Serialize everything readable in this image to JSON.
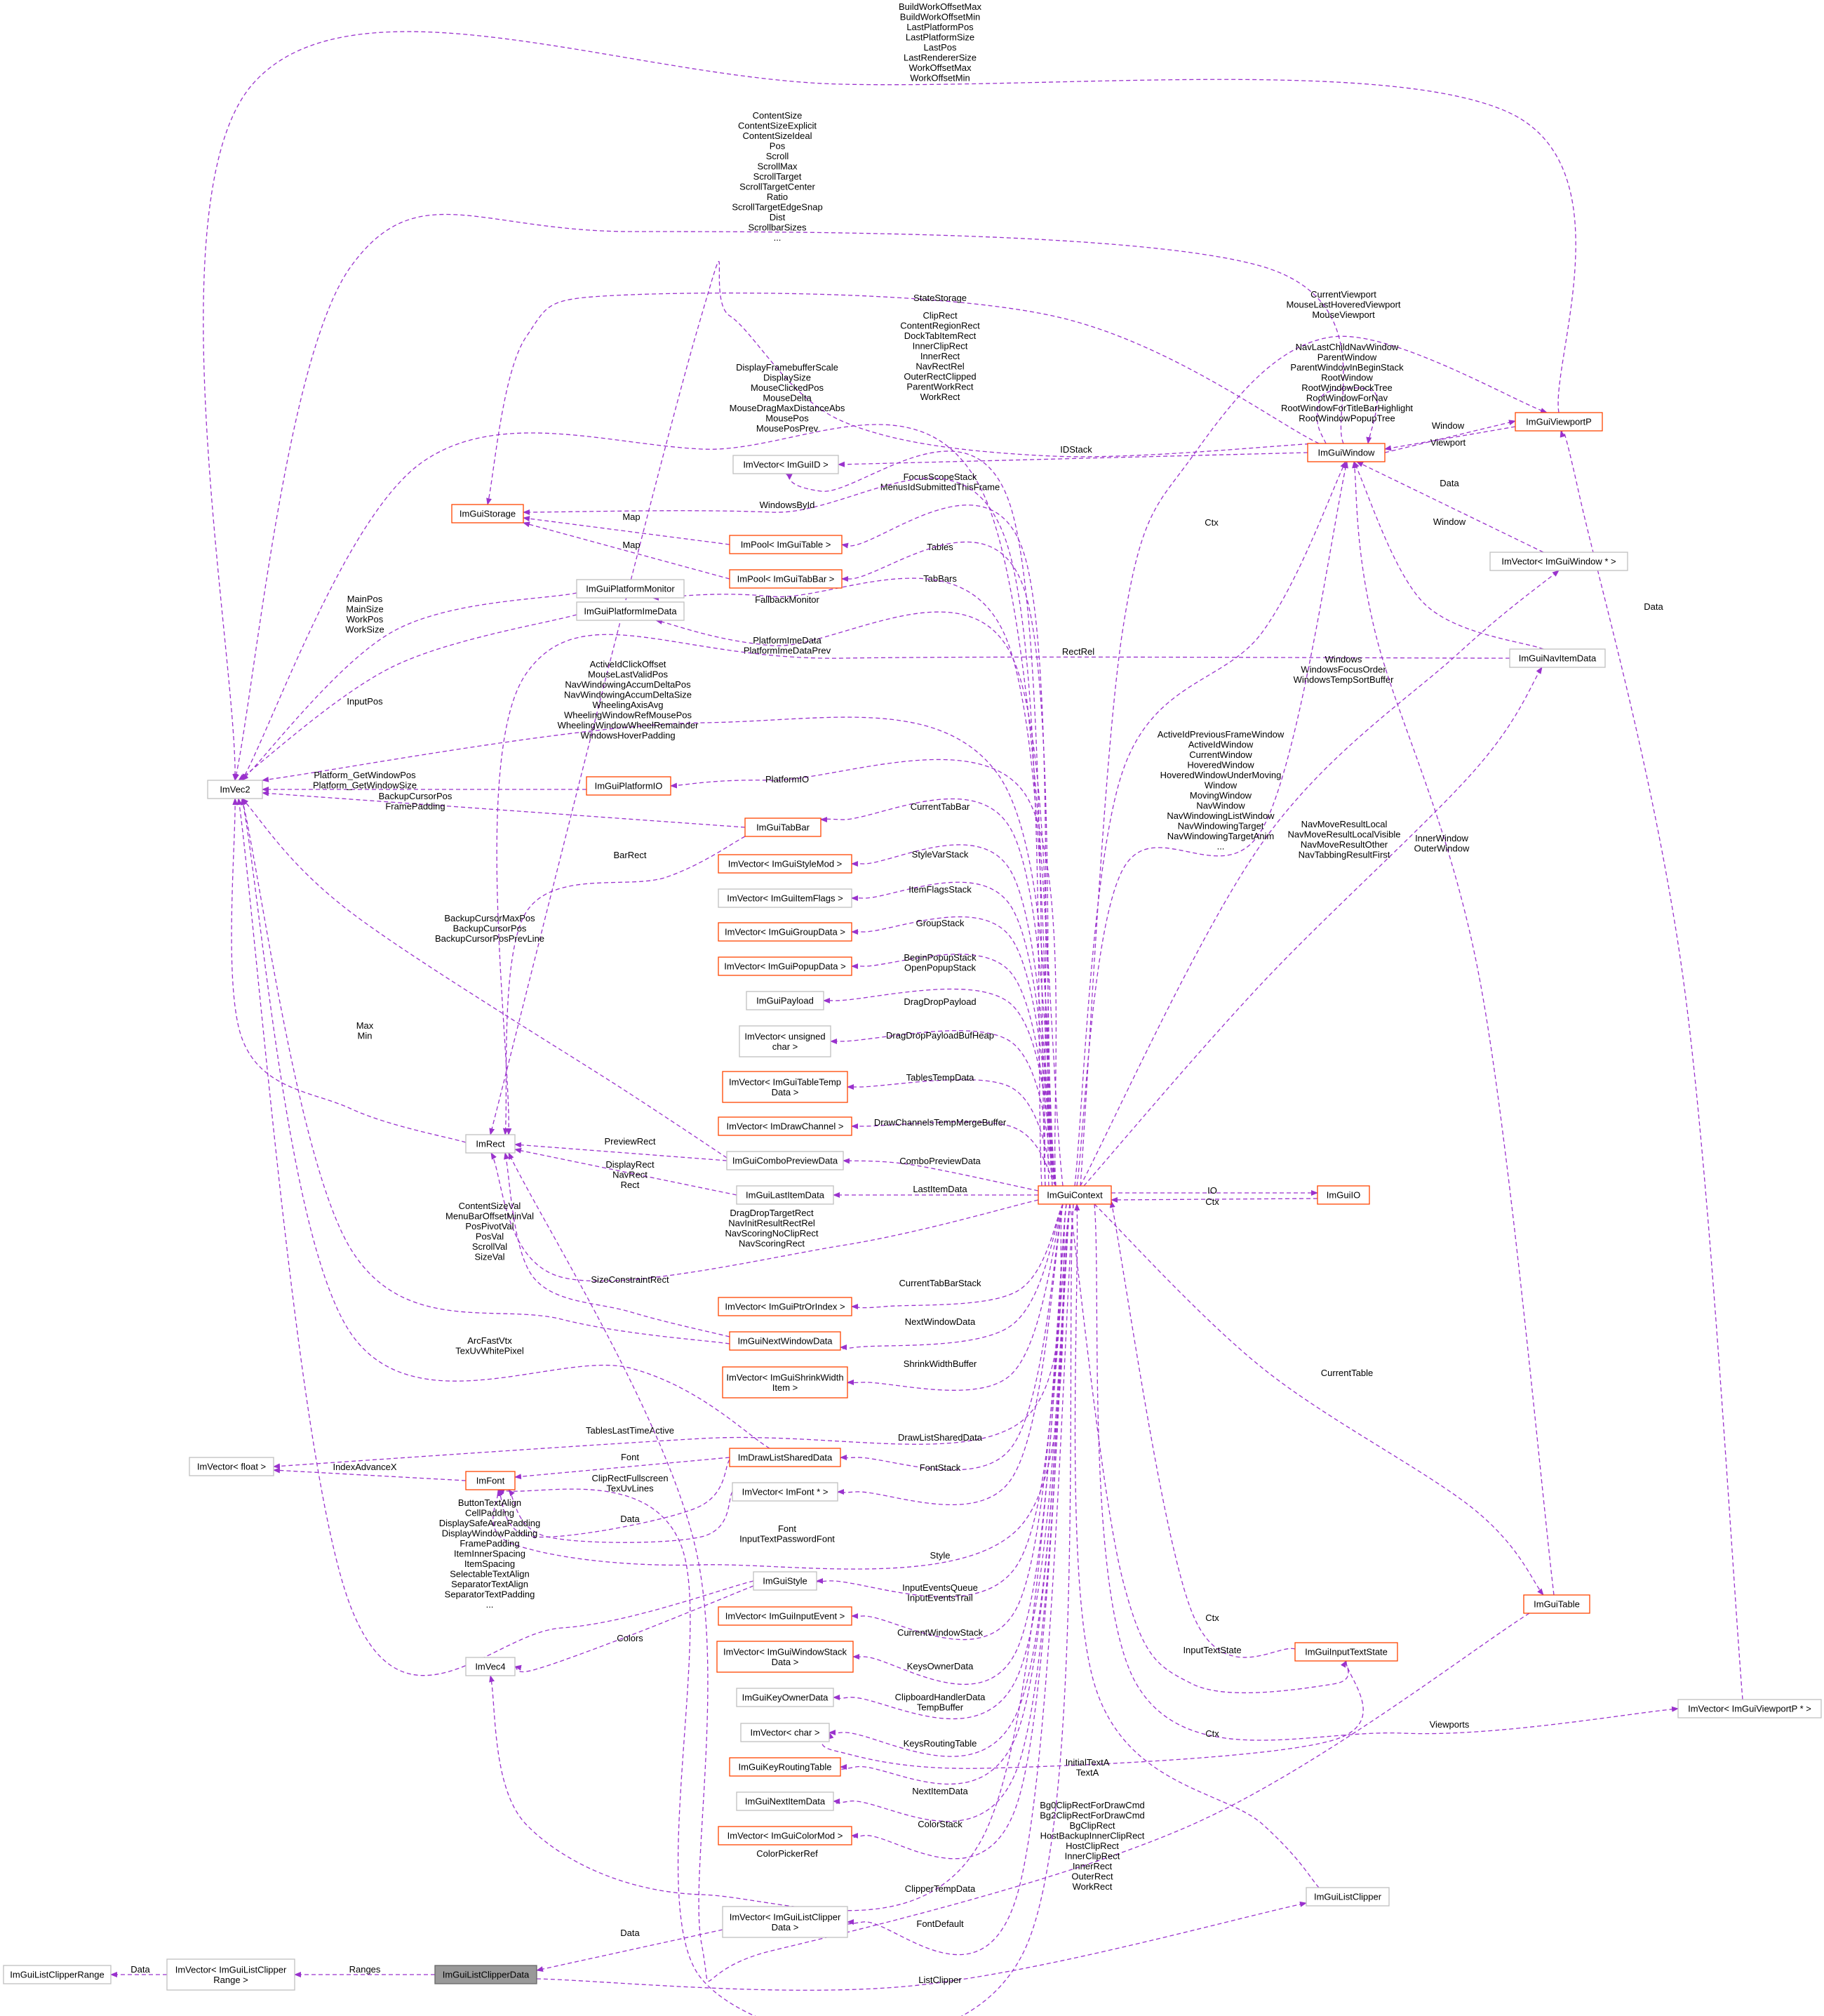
{
  "colors": {
    "edge": "#9a32cd",
    "node_border_defined": "#ff4500",
    "node_border_external": "#bfbfbf",
    "node_highlight_fill": "#999999",
    "text": "#000000"
  },
  "nodes": {
    "ImGuiListClipperRange": {
      "label": [
        "ImGuiListClipperRange"
      ],
      "kind": "external"
    },
    "ImVectorClipperRange": {
      "label": [
        "ImVector< ImGuiListClipper",
        "Range >"
      ],
      "kind": "external"
    },
    "ImGuiListClipperData": {
      "label": [
        "ImGuiListClipperData"
      ],
      "kind": "highlight"
    },
    "ImVec2": {
      "label": [
        "ImVec2"
      ],
      "kind": "external"
    },
    "ImGuiStorage": {
      "label": [
        "ImGuiStorage"
      ],
      "kind": "defined"
    },
    "ImGuiPlatformMonitor": {
      "label": [
        "ImGuiPlatformMonitor"
      ],
      "kind": "external"
    },
    "ImGuiPlatformImeData": {
      "label": [
        "ImGuiPlatformImeData"
      ],
      "kind": "external"
    },
    "ImVectorImGuiID": {
      "label": [
        "ImVector< ImGuiID >"
      ],
      "kind": "external"
    },
    "ImPoolTable": {
      "label": [
        "ImPool< ImGuiTable >"
      ],
      "kind": "defined"
    },
    "ImPoolTabBar": {
      "label": [
        "ImPool< ImGuiTabBar >"
      ],
      "kind": "defined"
    },
    "ImGuiPlatformIO": {
      "label": [
        "ImGuiPlatformIO"
      ],
      "kind": "defined"
    },
    "ImGuiTabBar": {
      "label": [
        "ImGuiTabBar"
      ],
      "kind": "defined"
    },
    "ImVectorStyleMod": {
      "label": [
        "ImVector< ImGuiStyleMod >"
      ],
      "kind": "defined"
    },
    "ImVectorItemFlags": {
      "label": [
        "ImVector< ImGuiItemFlags >"
      ],
      "kind": "external"
    },
    "ImVectorGroupData": {
      "label": [
        "ImVector< ImGuiGroupData >"
      ],
      "kind": "defined"
    },
    "ImVectorPopupData": {
      "label": [
        "ImVector< ImGuiPopupData >"
      ],
      "kind": "defined"
    },
    "ImGuiPayload": {
      "label": [
        "ImGuiPayload"
      ],
      "kind": "external"
    },
    "ImVectorUChar": {
      "label": [
        "ImVector< unsigned",
        "char >"
      ],
      "kind": "external"
    },
    "ImVectorTableTemp": {
      "label": [
        "ImVector< ImGuiTableTemp",
        "Data >"
      ],
      "kind": "defined"
    },
    "ImVectorDrawChannel": {
      "label": [
        "ImVector< ImDrawChannel >"
      ],
      "kind": "defined"
    },
    "ImRect": {
      "label": [
        "ImRect"
      ],
      "kind": "external"
    },
    "ImGuiComboPreviewData": {
      "label": [
        "ImGuiComboPreviewData"
      ],
      "kind": "external"
    },
    "ImGuiLastItemData": {
      "label": [
        "ImGuiLastItemData"
      ],
      "kind": "external"
    },
    "ImGuiContext": {
      "label": [
        "ImGuiContext"
      ],
      "kind": "defined"
    },
    "ImGuiIO": {
      "label": [
        "ImGuiIO"
      ],
      "kind": "defined"
    },
    "ImVectorPtrOrIndex": {
      "label": [
        "ImVector< ImGuiPtrOrIndex >"
      ],
      "kind": "defined"
    },
    "ImGuiNextWindowData": {
      "label": [
        "ImGuiNextWindowData"
      ],
      "kind": "defined"
    },
    "ImVectorShrinkWidth": {
      "label": [
        "ImVector< ImGuiShrinkWidth",
        "Item >"
      ],
      "kind": "defined"
    },
    "ImVectorFloat": {
      "label": [
        "ImVector< float >"
      ],
      "kind": "external"
    },
    "ImFont": {
      "label": [
        "ImFont"
      ],
      "kind": "defined"
    },
    "ImDrawListSharedData": {
      "label": [
        "ImDrawListSharedData"
      ],
      "kind": "defined"
    },
    "ImVectorFontPtr": {
      "label": [
        "ImVector< ImFont * >"
      ],
      "kind": "external"
    },
    "ImGuiStyle": {
      "label": [
        "ImGuiStyle"
      ],
      "kind": "external"
    },
    "ImVectorInputEvent": {
      "label": [
        "ImVector< ImGuiInputEvent >"
      ],
      "kind": "defined"
    },
    "ImVec4": {
      "label": [
        "ImVec4"
      ],
      "kind": "external"
    },
    "ImVectorWindowStack": {
      "label": [
        "ImVector< ImGuiWindowStack",
        "Data >"
      ],
      "kind": "defined"
    },
    "ImGuiKeyOwnerData": {
      "label": [
        "ImGuiKeyOwnerData"
      ],
      "kind": "external"
    },
    "ImVectorChar": {
      "label": [
        "ImVector< char >"
      ],
      "kind": "external"
    },
    "ImGuiKeyRoutingTable": {
      "label": [
        "ImGuiKeyRoutingTable"
      ],
      "kind": "defined"
    },
    "ImGuiNextItemData": {
      "label": [
        "ImGuiNextItemData"
      ],
      "kind": "external"
    },
    "ImVectorColorMod": {
      "label": [
        "ImVector< ImGuiColorMod >"
      ],
      "kind": "defined"
    },
    "ImVectorClipperData": {
      "label": [
        "ImVector< ImGuiListClipper",
        "Data >"
      ],
      "kind": "external"
    },
    "ImGuiWindow": {
      "label": [
        "ImGuiWindow"
      ],
      "kind": "defined"
    },
    "ImGuiViewportP": {
      "label": [
        "ImGuiViewportP"
      ],
      "kind": "defined"
    },
    "ImVectorWindowPtr": {
      "label": [
        "ImVector< ImGuiWindow * >"
      ],
      "kind": "external"
    },
    "ImGuiNavItemData": {
      "label": [
        "ImGuiNavItemData"
      ],
      "kind": "external"
    },
    "ImGuiTable": {
      "label": [
        "ImGuiTable"
      ],
      "kind": "defined"
    },
    "ImGuiInputTextState": {
      "label": [
        "ImGuiInputTextState"
      ],
      "kind": "defined"
    },
    "ImVectorViewportPtr": {
      "label": [
        "ImVector< ImGuiViewportP * >"
      ],
      "kind": "external"
    },
    "ImGuiListClipper": {
      "label": [
        "ImGuiListClipper"
      ],
      "kind": "external"
    }
  },
  "edges": [
    {
      "from": "ImVectorClipperRange",
      "to": "ImGuiListClipperRange",
      "label": [
        "Data"
      ]
    },
    {
      "from": "ImGuiListClipperData",
      "to": "ImVectorClipperRange",
      "label": [
        "Ranges"
      ]
    },
    {
      "from": "ImGuiViewportP",
      "to": "ImVec2",
      "label": [
        "BuildWorkOffsetMax",
        "BuildWorkOffsetMin",
        "LastPlatformPos",
        "LastPlatformSize",
        "LastPos",
        "LastRendererSize",
        "WorkOffsetMax",
        "WorkOffsetMin"
      ]
    },
    {
      "from": "ImGuiWindow",
      "to": "ImVec2",
      "label": [
        "ContentSize",
        "ContentSizeExplicit",
        "ContentSizeIdeal",
        "Pos",
        "Scroll",
        "ScrollMax",
        "ScrollTarget",
        "ScrollTargetCenter",
        "Ratio",
        "ScrollTargetEdgeSnap",
        "Dist",
        "ScrollbarSizes",
        "..."
      ]
    },
    {
      "from": "ImGuiWindow",
      "to": "ImGuiStorage",
      "label": [
        "StateStorage"
      ]
    },
    {
      "from": "ImGuiWindow",
      "to": "ImRect",
      "label": [
        "ClipRect",
        "ContentRegionRect",
        "DockTabItemRect",
        "InnerClipRect",
        "InnerRect",
        "NavRectRel",
        "OuterRectClipped",
        "ParentWorkRect",
        "WorkRect"
      ]
    },
    {
      "from": "ImGuiContext",
      "to": "ImVec2",
      "label": [
        "DisplayFramebufferScale",
        "DisplaySize",
        "MouseClickedPos",
        "MouseDelta",
        "MouseDragMaxDistanceAbs",
        "MousePos",
        "MousePosPrev"
      ]
    },
    {
      "from": "ImGuiContext",
      "to": "ImGuiViewportP",
      "label": [
        "CurrentViewport",
        "MouseLastHoveredViewport",
        "MouseViewport"
      ]
    },
    {
      "from": "ImGuiWindow",
      "to": "ImGuiWindow",
      "label": [
        "NavLastChildNavWindow",
        "ParentWindow",
        "ParentWindowInBeginStack",
        "RootWindow",
        "RootWindowDockTree",
        "RootWindowForNav",
        "RootWindowForTitleBarHighlight",
        "RootWindowPopupTree"
      ]
    },
    {
      "from": "ImGuiViewportP",
      "to": "ImGuiWindow",
      "label": [
        "Window"
      ]
    },
    {
      "from": "ImGuiWindow",
      "to": "ImGuiViewportP",
      "label": [
        "Viewport"
      ]
    },
    {
      "from": "ImGuiWindow",
      "to": "ImVectorImGuiID",
      "label": [
        "IDStack"
      ]
    },
    {
      "from": "ImGuiContext",
      "to": "ImVectorImGuiID",
      "label": [
        "FocusScopeStack",
        "MenusIdSubmittedThisFrame"
      ]
    },
    {
      "from": "ImGuiContext",
      "to": "ImGuiStorage",
      "label": [
        "WindowsById"
      ]
    },
    {
      "from": "ImPoolTable",
      "to": "ImGuiStorage",
      "label": [
        "Map"
      ]
    },
    {
      "from": "ImPoolTabBar",
      "to": "ImGuiStorage",
      "label": [
        "Map"
      ]
    },
    {
      "from": "ImGuiContext",
      "to": "ImPoolTable",
      "label": [
        "Tables"
      ]
    },
    {
      "from": "ImGuiContext",
      "to": "ImPoolTabBar",
      "label": [
        "TabBars"
      ]
    },
    {
      "from": "ImVectorWindowPtr",
      "to": "ImGuiWindow",
      "label": [
        "Data"
      ]
    },
    {
      "from": "ImGuiNavItemData",
      "to": "ImGuiWindow",
      "label": [
        "Window"
      ]
    },
    {
      "from": "ImGuiContext",
      "to": "ImGuiWindow",
      "label": [
        "Ctx"
      ]
    },
    {
      "from": "ImGuiPlatformMonitor",
      "to": "ImVec2",
      "label": [
        "MainPos",
        "MainSize",
        "WorkPos",
        "WorkSize"
      ]
    },
    {
      "from": "ImGuiContext",
      "to": "ImGuiPlatformMonitor",
      "label": [
        "FallbackMonitor"
      ]
    },
    {
      "from": "ImGuiContext",
      "to": "ImGuiPlatformImeData",
      "label": [
        "PlatformImeData",
        "PlatformImeDataPrev"
      ]
    },
    {
      "from": "ImGuiPlatformImeData",
      "to": "ImVec2",
      "label": [
        "InputPos"
      ]
    },
    {
      "from": "ImGuiNavItemData",
      "to": "ImRect",
      "label": [
        "RectRel"
      ]
    },
    {
      "from": "ImGuiContext",
      "to": "ImVectorWindowPtr",
      "label": [
        "Windows",
        "WindowsFocusOrder",
        "WindowsTempSortBuffer"
      ]
    },
    {
      "from": "ImGuiContext",
      "to": "ImVec2",
      "label": [
        "ActiveIdClickOffset",
        "MouseLastValidPos",
        "NavWindowingAccumDeltaPos",
        "NavWindowingAccumDeltaSize",
        "WheelingAxisAvg",
        "WheelingWindowRefMousePos",
        "WheelingWindowWheelRemainder",
        "WindowsHoverPadding"
      ]
    },
    {
      "from": "ImGuiContext",
      "to": "ImGuiWindow",
      "label": [
        "ActiveIdPreviousFrameWindow",
        "ActiveIdWindow",
        "CurrentWindow",
        "HoveredWindow",
        "HoveredWindowUnderMoving",
        "Window",
        "MovingWindow",
        "NavWindow",
        "NavWindowingListWindow",
        "NavWindowingTarget",
        "NavWindowingTargetAnim",
        "..."
      ]
    },
    {
      "from": "ImGuiContext",
      "to": "ImGuiNavItemData",
      "label": [
        "NavMoveResultLocal",
        "NavMoveResultLocalVisible",
        "NavMoveResultOther",
        "NavTabbingResultFirst"
      ]
    },
    {
      "from": "ImGuiTable",
      "to": "ImGuiWindow",
      "label": [
        "InnerWindow",
        "OuterWindow"
      ]
    },
    {
      "from": "ImVectorViewportPtr",
      "to": "ImGuiViewportP",
      "label": [
        "Data"
      ]
    },
    {
      "from": "ImGuiPlatformIO",
      "to": "ImVec2",
      "label": [
        "Platform_GetWindowPos",
        "Platform_GetWindowSize"
      ]
    },
    {
      "from": "ImGuiContext",
      "to": "ImGuiPlatformIO",
      "label": [
        "PlatformIO"
      ]
    },
    {
      "from": "ImGuiTabBar",
      "to": "ImVec2",
      "label": [
        "BackupCursorPos",
        "FramePadding"
      ]
    },
    {
      "from": "ImGuiContext",
      "to": "ImGuiTabBar",
      "label": [
        "CurrentTabBar"
      ]
    },
    {
      "from": "ImGuiTabBar",
      "to": "ImRect",
      "label": [
        "BarRect"
      ]
    },
    {
      "from": "ImGuiContext",
      "to": "ImVectorStyleMod",
      "label": [
        "StyleVarStack"
      ]
    },
    {
      "from": "ImGuiContext",
      "to": "ImVectorItemFlags",
      "label": [
        "ItemFlagsStack"
      ]
    },
    {
      "from": "ImGuiComboPreviewData",
      "to": "ImVec2",
      "label": [
        "BackupCursorMaxPos",
        "BackupCursorPos",
        "BackupCursorPosPrevLine"
      ]
    },
    {
      "from": "ImGuiContext",
      "to": "ImVectorGroupData",
      "label": [
        "GroupStack"
      ]
    },
    {
      "from": "ImGuiContext",
      "to": "ImVectorPopupData",
      "label": [
        "BeginPopupStack",
        "OpenPopupStack"
      ]
    },
    {
      "from": "ImGuiContext",
      "to": "ImGuiPayload",
      "label": [
        "DragDropPayload"
      ]
    },
    {
      "from": "ImRect",
      "to": "ImVec2",
      "label": [
        "Max",
        "Min"
      ]
    },
    {
      "from": "ImGuiContext",
      "to": "ImVectorUChar",
      "label": [
        "DragDropPayloadBufHeap"
      ]
    },
    {
      "from": "ImGuiContext",
      "to": "ImVectorTableTemp",
      "label": [
        "TablesTempData"
      ]
    },
    {
      "from": "ImGuiContext",
      "to": "ImVectorDrawChannel",
      "label": [
        "DrawChannelsTempMergeBuffer"
      ]
    },
    {
      "from": "ImGuiComboPreviewData",
      "to": "ImRect",
      "label": [
        "PreviewRect"
      ]
    },
    {
      "from": "ImGuiContext",
      "to": "ImGuiComboPreviewData",
      "label": [
        "ComboPreviewData"
      ]
    },
    {
      "from": "ImGuiLastItemData",
      "to": "ImRect",
      "label": [
        "DisplayRect",
        "NavRect",
        "Rect"
      ]
    },
    {
      "from": "ImGuiContext",
      "to": "ImGuiLastItemData",
      "label": [
        "LastItemData"
      ]
    },
    {
      "from": "ImGuiContext",
      "to": "ImGuiIO",
      "label": [
        "IO"
      ]
    },
    {
      "from": "ImGuiIO",
      "to": "ImGuiContext",
      "label": [
        "Ctx"
      ]
    },
    {
      "from": "ImGuiContext",
      "to": "ImRect",
      "label": [
        "DragDropTargetRect",
        "NavInitResultRectRel",
        "NavScoringNoClipRect",
        "NavScoringRect"
      ]
    },
    {
      "from": "ImGuiNextWindowData",
      "to": "ImVec2",
      "label": [
        "ContentSizeVal",
        "MenuBarOffsetMinVal",
        "PosPivotVal",
        "PosVal",
        "ScrollVal",
        "SizeVal"
      ]
    },
    {
      "from": "ImGuiNextWindowData",
      "to": "ImRect",
      "label": [
        "SizeConstraintRect"
      ]
    },
    {
      "from": "ImGuiContext",
      "to": "ImVectorPtrOrIndex",
      "label": [
        "CurrentTabBarStack"
      ]
    },
    {
      "from": "ImGuiContext",
      "to": "ImGuiNextWindowData",
      "label": [
        "NextWindowData"
      ]
    },
    {
      "from": "ImGuiContext",
      "to": "ImVectorShrinkWidth",
      "label": [
        "ShrinkWidthBuffer"
      ]
    },
    {
      "from": "ImGuiContext",
      "to": "ImGuiTable",
      "label": [
        "CurrentTable"
      ]
    },
    {
      "from": "ImDrawListSharedData",
      "to": "ImVec2",
      "label": [
        "ArcFastVtx",
        "TexUvWhitePixel"
      ]
    },
    {
      "from": "ImGuiContext",
      "to": "ImVectorFloat",
      "label": [
        "TablesLastTimeActive"
      ]
    },
    {
      "from": "ImFont",
      "to": "ImVectorFloat",
      "label": [
        "IndexAdvanceX"
      ]
    },
    {
      "from": "ImDrawListSharedData",
      "to": "ImFont",
      "label": [
        "Font"
      ]
    },
    {
      "from": "ImGuiContext",
      "to": "ImDrawListSharedData",
      "label": [
        "DrawListSharedData"
      ]
    },
    {
      "from": "ImDrawListSharedData",
      "to": "ImVec4",
      "label": [
        "ClipRectFullscreen",
        "TexUvLines"
      ]
    },
    {
      "from": "ImGuiContext",
      "to": "ImVectorFontPtr",
      "label": [
        "FontStack"
      ]
    },
    {
      "from": "ImVectorFontPtr",
      "to": "ImFont",
      "label": [
        "Data"
      ]
    },
    {
      "from": "ImGuiContext",
      "to": "ImFont",
      "label": [
        "Font",
        "InputTextPasswordFont"
      ]
    },
    {
      "from": "ImGuiStyle",
      "to": "ImVec2",
      "label": [
        "ButtonTextAlign",
        "CellPadding",
        "DisplaySafeAreaPadding",
        "DisplayWindowPadding",
        "FramePadding",
        "ItemInnerSpacing",
        "ItemSpacing",
        "SelectableTextAlign",
        "SeparatorTextAlign",
        "SeparatorTextPadding",
        "..."
      ]
    },
    {
      "from": "ImGuiContext",
      "to": "ImGuiStyle",
      "label": [
        "Style"
      ]
    },
    {
      "from": "ImGuiContext",
      "to": "ImVectorInputEvent",
      "label": [
        "InputEventsQueue",
        "InputEventsTrail"
      ]
    },
    {
      "from": "ImGuiStyle",
      "to": "ImVec4",
      "label": [
        "Colors"
      ]
    },
    {
      "from": "ImGuiContext",
      "to": "ImVectorWindowStack",
      "label": [
        "CurrentWindowStack"
      ]
    },
    {
      "from": "ImGuiInputTextState",
      "to": "ImGuiContext",
      "label": [
        "Ctx"
      ]
    },
    {
      "from": "ImGuiContext",
      "to": "ImGuiInputTextState",
      "label": [
        "InputTextState"
      ]
    },
    {
      "from": "ImGuiContext",
      "to": "ImGuiKeyOwnerData",
      "label": [
        "KeysOwnerData"
      ]
    },
    {
      "from": "ImGuiContext",
      "to": "ImVectorChar",
      "label": [
        "ClipboardHandlerData",
        "TempBuffer"
      ]
    },
    {
      "from": "ImGuiContext",
      "to": "ImVectorViewportPtr",
      "label": [
        "Viewports"
      ]
    },
    {
      "from": "ImGuiContext",
      "to": "ImGuiKeyRoutingTable",
      "label": [
        "KeysRoutingTable"
      ]
    },
    {
      "from": "ImGuiListClipper",
      "to": "ImGuiContext",
      "label": [
        "Ctx"
      ]
    },
    {
      "from": "ImGuiInputTextState",
      "to": "ImVectorChar",
      "label": [
        "InitialTextA",
        "TextA"
      ]
    },
    {
      "from": "ImGuiContext",
      "to": "ImGuiNextItemData",
      "label": [
        "NextItemData"
      ]
    },
    {
      "from": "ImGuiTable",
      "to": "ImRect",
      "label": [
        "Bg0ClipRectForDrawCmd",
        "Bg2ClipRectForDrawCmd",
        "BgClipRect",
        "HostBackupInnerClipRect",
        "HostClipRect",
        "InnerClipRect",
        "InnerRect",
        "OuterRect",
        "WorkRect"
      ]
    },
    {
      "from": "ImGuiContext",
      "to": "ImVectorColorMod",
      "label": [
        "ColorStack"
      ]
    },
    {
      "from": "ImGuiContext",
      "to": "ImVec4",
      "label": [
        "ColorPickerRef"
      ]
    },
    {
      "from": "ImGuiContext",
      "to": "ImVectorClipperData",
      "label": [
        "ClipperTempData"
      ]
    },
    {
      "from": "ImGuiContext",
      "to": "ImFont",
      "label": [
        "FontDefault"
      ]
    },
    {
      "from": "ImVectorClipperData",
      "to": "ImGuiListClipperData",
      "label": [
        "Data"
      ]
    },
    {
      "from": "ImGuiListClipperData",
      "to": "ImGuiListClipper",
      "label": [
        "ListClipper"
      ]
    }
  ]
}
